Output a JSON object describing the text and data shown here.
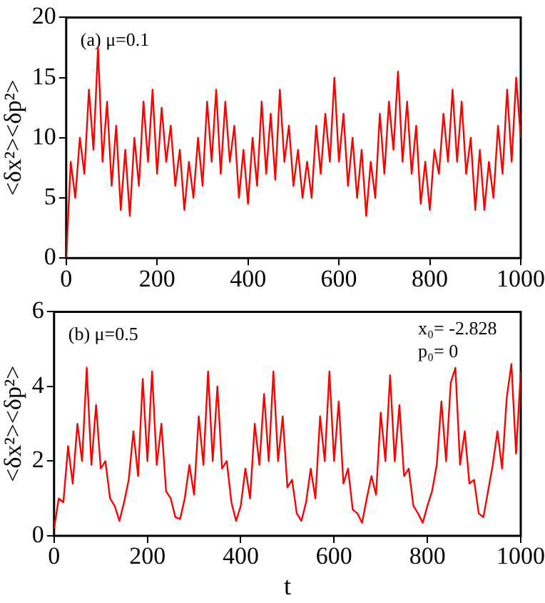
{
  "chart_data": [
    {
      "type": "line",
      "ylabel": "<δx²><δp²>",
      "annotations": [
        "(a) μ=0.1"
      ],
      "xlim": [
        0,
        1000
      ],
      "xticks": [
        0,
        200,
        400,
        600,
        800,
        1000
      ],
      "ylim": [
        0,
        20
      ],
      "yticks": [
        0,
        5,
        10,
        15,
        20
      ],
      "x": [
        0,
        10,
        20,
        30,
        40,
        50,
        60,
        70,
        80,
        90,
        100,
        110,
        120,
        130,
        140,
        150,
        160,
        170,
        180,
        190,
        200,
        210,
        220,
        230,
        240,
        250,
        260,
        270,
        280,
        290,
        300,
        310,
        320,
        330,
        340,
        350,
        360,
        370,
        380,
        390,
        400,
        410,
        420,
        430,
        440,
        450,
        460,
        470,
        480,
        490,
        500,
        510,
        520,
        530,
        540,
        550,
        560,
        570,
        580,
        590,
        600,
        610,
        620,
        630,
        640,
        650,
        660,
        670,
        680,
        690,
        700,
        710,
        720,
        730,
        740,
        750,
        760,
        770,
        780,
        790,
        800,
        810,
        820,
        830,
        840,
        850,
        860,
        870,
        880,
        890,
        900,
        910,
        920,
        930,
        940,
        950,
        960,
        970,
        980,
        990,
        1000
      ],
      "series": [
        {
          "color": "#ff0000",
          "values": [
            0,
            8,
            5,
            10,
            7,
            14,
            9,
            17.5,
            8,
            13,
            6,
            11,
            4,
            9,
            3.5,
            10,
            6,
            13,
            8,
            14,
            7,
            12.5,
            8,
            11,
            6,
            9,
            4,
            8,
            5,
            10,
            6,
            13,
            8,
            14,
            7,
            13,
            8,
            11,
            5,
            9,
            4.5,
            10,
            6,
            13,
            7,
            12,
            6.5,
            14,
            8,
            11,
            6,
            9,
            5,
            8,
            5,
            11,
            7,
            12,
            8,
            15,
            8,
            12,
            6,
            10,
            5,
            9,
            3.5,
            8,
            5,
            12,
            7,
            13,
            9,
            15.5,
            8,
            13,
            7,
            11,
            4.5,
            8,
            4,
            9,
            7,
            12,
            8,
            14,
            8,
            13,
            7,
            10,
            4,
            9,
            4,
            8,
            5,
            11,
            7,
            14,
            8,
            15,
            10
          ]
        }
      ]
    },
    {
      "type": "line",
      "xlabel": "t",
      "ylabel": "<δx²><δp²>",
      "annotations": [
        "(b) μ=0.5",
        "x₀= -2.828",
        "p₀= 0"
      ],
      "xlim": [
        0,
        1000
      ],
      "xticks": [
        0,
        200,
        400,
        600,
        800,
        1000
      ],
      "ylim": [
        0,
        6
      ],
      "yticks": [
        0,
        2,
        4,
        6
      ],
      "x": [
        0,
        10,
        20,
        30,
        40,
        50,
        60,
        70,
        80,
        90,
        100,
        110,
        120,
        130,
        140,
        150,
        160,
        170,
        180,
        190,
        200,
        210,
        220,
        230,
        240,
        250,
        260,
        270,
        280,
        290,
        300,
        310,
        320,
        330,
        340,
        350,
        360,
        370,
        380,
        390,
        400,
        410,
        420,
        430,
        440,
        450,
        460,
        470,
        480,
        490,
        500,
        510,
        520,
        530,
        540,
        550,
        560,
        570,
        580,
        590,
        600,
        610,
        620,
        630,
        640,
        650,
        660,
        670,
        680,
        690,
        700,
        710,
        720,
        730,
        740,
        750,
        760,
        770,
        780,
        790,
        800,
        810,
        820,
        830,
        840,
        850,
        860,
        870,
        880,
        890,
        900,
        910,
        920,
        930,
        940,
        950,
        960,
        970,
        980,
        990,
        1000
      ],
      "series": [
        {
          "color": "#ff0000",
          "values": [
            0.2,
            1.0,
            0.9,
            2.4,
            1.4,
            3.0,
            2.0,
            4.5,
            1.9,
            3.5,
            1.8,
            2.0,
            1.0,
            0.8,
            0.4,
            0.9,
            1.5,
            2.8,
            1.6,
            4.2,
            2.0,
            4.4,
            1.9,
            3.0,
            1.2,
            1.0,
            0.5,
            0.45,
            1.0,
            1.9,
            1.1,
            3.2,
            1.9,
            4.4,
            2.0,
            4.0,
            1.8,
            2.0,
            0.9,
            0.4,
            0.8,
            1.8,
            1.0,
            3.0,
            1.9,
            3.8,
            2.0,
            4.4,
            2.0,
            3.2,
            1.3,
            1.5,
            0.6,
            0.4,
            0.9,
            1.8,
            1.0,
            3.2,
            2.0,
            4.4,
            2.0,
            3.6,
            1.4,
            1.8,
            0.7,
            0.6,
            0.35,
            1.0,
            1.6,
            1.1,
            3.3,
            2.0,
            4.3,
            2.0,
            3.5,
            1.6,
            1.8,
            0.8,
            0.6,
            0.35,
            0.8,
            1.2,
            1.9,
            3.6,
            2.0,
            4.1,
            4.5,
            1.9,
            2.8,
            1.4,
            1.5,
            0.6,
            0.5,
            1.2,
            1.9,
            2.8,
            1.8,
            3.7,
            4.6,
            2.2,
            4.4
          ]
        }
      ]
    }
  ]
}
